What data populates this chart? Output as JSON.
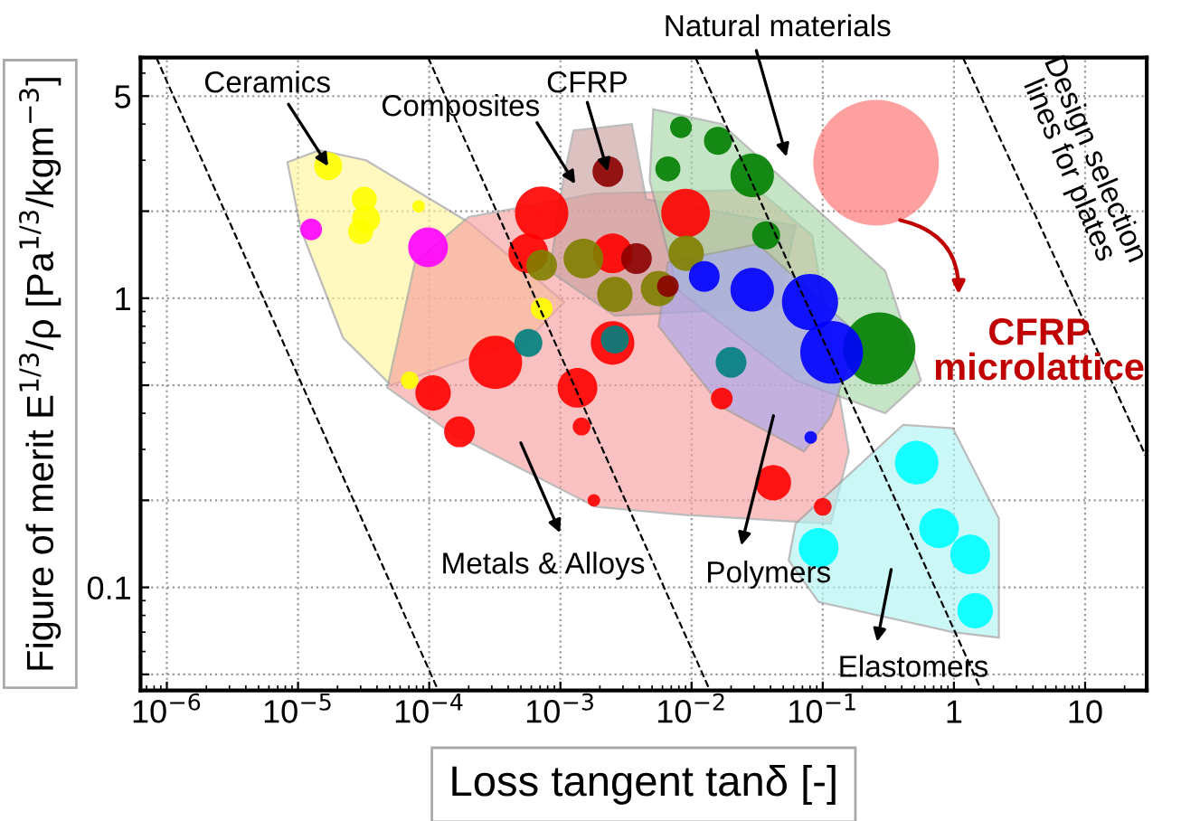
{
  "chart_data": {
    "type": "bubble",
    "xlabel": "Loss tangent tanδ [-]",
    "ylabel": "Figure of merit E$^{1/3}$/ρ [Pa$^{1/3}$/kgm$^{−3}$]",
    "log": "xy",
    "grid": true,
    "legend": false,
    "xlim": [
      6.3e-07,
      29.5
    ],
    "ylim": [
      0.044,
      6.8
    ],
    "xticks": [
      {
        "value": 1e-06,
        "label": "10$^{−6}$"
      },
      {
        "value": 1e-05,
        "label": "10$^{−5}$"
      },
      {
        "value": 0.0001,
        "label": "10$^{−4}$"
      },
      {
        "value": 0.001,
        "label": "10$^{−3}$"
      },
      {
        "value": 0.01,
        "label": "10$^{−2}$"
      },
      {
        "value": 0.1,
        "label": "10$^{−1}$"
      },
      1,
      10
    ],
    "yticks": [
      {
        "value": 0.05,
        "label": null
      },
      0.1,
      {
        "value": 0.2,
        "label": null
      },
      {
        "value": 0.5,
        "label": null
      },
      1,
      {
        "value": 2,
        "label": null
      },
      5
    ],
    "series": [
      {
        "type": "area",
        "color": "#fff59d",
        "x": [
          8.3e-06,
          1.45e-05,
          3.3e-05,
          0.0002,
          0.00107,
          0.00058,
          5.1e-05,
          2.2e-05,
          1.05e-05
        ],
        "values": [
          2.95,
          3.25,
          3.0,
          1.83,
          0.97,
          0.73,
          0.5,
          0.73,
          1.73
        ]
      },
      {
        "type": "area",
        "color": "#f7a0a0",
        "x": [
          7.8e-05,
          0.0002,
          0.00185,
          0.032,
          0.083,
          0.158,
          0.115,
          0.0091,
          0.00185,
          0.00015,
          4.8e-05
        ],
        "values": [
          1.33,
          1.91,
          2.3,
          2.37,
          1.65,
          0.295,
          0.166,
          0.178,
          0.19,
          0.34,
          0.49
        ]
      },
      {
        "type": "area",
        "color": "#c9a0a0",
        "x": [
          0.00126,
          0.0035,
          0.0045,
          0.062,
          0.045,
          0.0026,
          0.00083,
          0.00105
        ],
        "values": [
          3.8,
          4.0,
          2.2,
          1.78,
          0.93,
          0.87,
          1.24,
          2.55
        ]
      },
      {
        "type": "area",
        "color": "#a8d8a8",
        "x": [
          0.0051,
          0.017,
          0.3,
          0.56,
          0.3,
          0.062,
          0.0078,
          0.0048
        ],
        "values": [
          4.5,
          4.0,
          1.24,
          0.52,
          0.4,
          0.52,
          1.07,
          2.55
        ]
      },
      {
        "type": "area",
        "color": "#a8a8f0",
        "x": [
          0.0066,
          0.032,
          0.185,
          0.115,
          0.072,
          0.017,
          0.0056
        ],
        "values": [
          1.33,
          1.54,
          0.75,
          0.39,
          0.295,
          0.42,
          0.8
        ]
      },
      {
        "type": "area",
        "color": "#b0f4f4",
        "x": [
          0.062,
          0.41,
          0.98,
          2.2,
          2.2,
          0.98,
          0.093,
          0.055
        ],
        "values": [
          0.166,
          0.365,
          0.355,
          0.173,
          0.067,
          0.07,
          0.089,
          0.124
        ]
      },
      {
        "type": "line",
        "color": "#000000",
        "line_style": "dashed",
        "x": [
          8.3e-07,
          0.000117
        ],
        "values": [
          6.8,
          0.044
        ]
      },
      {
        "type": "line",
        "color": "#000000",
        "line_style": "dashed",
        "x": [
          9.8e-05,
          0.0138
        ],
        "values": [
          6.8,
          0.044
        ]
      },
      {
        "type": "line",
        "color": "#000000",
        "line_style": "dashed",
        "x": [
          0.0107,
          1.62
        ],
        "values": [
          6.8,
          0.044
        ]
      },
      {
        "type": "line",
        "color": "#000000",
        "line_style": "dashed",
        "x": [
          1.17,
          29.5
        ],
        "values": [
          6.8,
          0.28
        ]
      },
      {
        "color": "#ffff00",
        "x": [
          1.7e-05,
          3.2e-05,
          3.3e-05,
          8.3e-05,
          3e-05,
          0.00072,
          7.1e-05
        ],
        "values": [
          2.86,
          2.2,
          1.88,
          2.08,
          1.7,
          0.92,
          0.52
        ],
        "sizes": [
          0.05,
          0.04,
          0.05,
          0.01,
          0.04,
          0.03,
          0.02
        ]
      },
      {
        "color": "#ff00ff",
        "x": [
          1.26e-05,
          9.8e-05
        ],
        "values": [
          1.73,
          1.5
        ],
        "sizes": [
          0.03,
          0.1
        ]
      },
      {
        "color": "#ff0000",
        "x": [
          0.00072,
          0.009,
          0.0025,
          0.00057,
          0.00032,
          0.0025,
          0.00135,
          0.000107,
          0.00017,
          0.00145,
          0.0018,
          0.042,
          0.017,
          0.1
        ],
        "values": [
          1.97,
          1.97,
          1.43,
          1.43,
          0.6,
          0.7,
          0.49,
          0.47,
          0.345,
          0.36,
          0.2,
          0.23,
          0.45,
          0.19
        ],
        "sizes": [
          0.18,
          0.15,
          0.1,
          0.1,
          0.18,
          0.12,
          0.1,
          0.08,
          0.06,
          0.02,
          0.01,
          0.08,
          0.03,
          0.02
        ]
      },
      {
        "color": "#808000",
        "x": [
          0.00072,
          0.0026,
          0.0015,
          0.0056,
          0.0091
        ],
        "values": [
          1.3,
          1.03,
          1.37,
          1.08,
          1.43
        ],
        "sizes": [
          0.06,
          0.08,
          0.1,
          0.08,
          0.08
        ]
      },
      {
        "color": "#8b0000",
        "x": [
          0.0023,
          0.0038,
          0.0066
        ],
        "values": [
          2.74,
          1.37,
          1.1
        ],
        "sizes": [
          0.06,
          0.06,
          0.03
        ]
      },
      {
        "color": "#008000",
        "x": [
          0.0083,
          0.0159,
          0.0066,
          0.029,
          0.037,
          0.27
        ],
        "values": [
          3.9,
          3.5,
          2.8,
          2.66,
          1.65,
          0.67
        ],
        "sizes": [
          0.03,
          0.05,
          0.04,
          0.12,
          0.05,
          0.33
        ]
      },
      {
        "color": "#0000ff",
        "x": [
          0.0125,
          0.029,
          0.08,
          0.117,
          0.081
        ],
        "values": [
          1.19,
          1.07,
          0.97,
          0.65,
          0.33
        ],
        "sizes": [
          0.06,
          0.12,
          0.2,
          0.25,
          0.01
        ]
      },
      {
        "color": "#008080",
        "x": [
          0.00057,
          0.0026,
          0.02
        ],
        "values": [
          0.7,
          0.72,
          0.6
        ],
        "sizes": [
          0.05,
          0.05,
          0.06
        ]
      },
      {
        "color": "#00ffff",
        "x": [
          0.52,
          0.77,
          1.33,
          1.45,
          0.093
        ],
        "values": [
          0.27,
          0.16,
          0.13,
          0.083,
          0.137
        ],
        "sizes": [
          0.12,
          0.1,
          0.1,
          0.08,
          0.1
        ]
      },
      {
        "color": "#ff6060",
        "x": [
          0.255
        ],
        "values": [
          2.94
        ],
        "sizes": [
          1
        ]
      }
    ],
    "annotations": [
      {
        "text": "Ceramics",
        "x": 1.7e-05,
        "y": 2.86
      },
      "Composites",
      {
        "text": "CFRP",
        "x": 0.0023,
        "y": 2.74
      },
      "Natural materials",
      "Metals & Alloys",
      "Polymers",
      "Elastomers",
      "CFRP\nmicrolattice",
      "Design selection\nlines for plates"
    ]
  }
}
